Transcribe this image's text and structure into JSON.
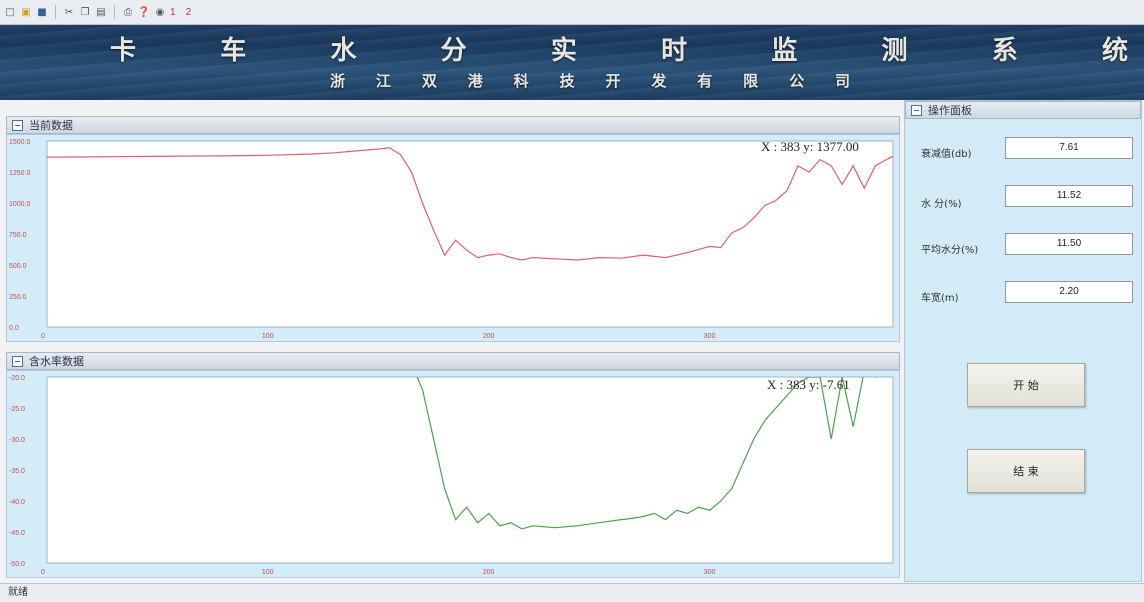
{
  "toolbar": {
    "icons": [
      "new-icon",
      "open-icon",
      "save-icon",
      "cut-icon",
      "copy-icon",
      "paste-icon",
      "print-icon",
      "help-icon",
      "about-icon"
    ],
    "num1": "1",
    "num2": "2"
  },
  "header": {
    "title_chars": [
      "卡",
      "车",
      "水",
      "分",
      "实",
      "时",
      "监",
      "测",
      "系",
      "统"
    ],
    "subtitle_chars": [
      "浙",
      "江",
      "双",
      "港",
      "科",
      "技",
      "开",
      "发",
      "有",
      "限",
      "公",
      "司"
    ]
  },
  "chart1": {
    "header": "当前数据",
    "readout": "X : 383   y: 1377.00"
  },
  "chart2": {
    "header": "含水率数据",
    "readout": "X : 383   y: -7.61"
  },
  "panel": {
    "header": "操作面板",
    "fields": [
      {
        "label": "衰减值(db)",
        "value": "7.61"
      },
      {
        "label": "水 分(%)",
        "value": "11.52"
      },
      {
        "label": "平均水分(%)",
        "value": "11.50"
      },
      {
        "label": "车宽(m)",
        "value": "2.20"
      }
    ],
    "start_label": "开 始",
    "stop_label": "结 束"
  },
  "status": {
    "text": "就绪"
  },
  "chart_data": [
    {
      "type": "line",
      "title": "",
      "color": "#e06070",
      "ylim": [
        0,
        1500
      ],
      "xlim": [
        0,
        383
      ],
      "yticks": [
        "1500.0",
        "1250.0",
        "1000.0",
        "750.0",
        "500.0",
        "250.0",
        "0.0"
      ],
      "xticks": [
        {
          "x": 0,
          "label": "0"
        },
        {
          "x": 100,
          "label": "100"
        },
        {
          "x": 200,
          "label": "200"
        },
        {
          "x": 300,
          "label": "300"
        }
      ],
      "x": [
        0,
        20,
        40,
        60,
        80,
        100,
        120,
        130,
        140,
        150,
        155,
        160,
        165,
        170,
        175,
        180,
        185,
        190,
        195,
        200,
        205,
        210,
        215,
        220,
        230,
        240,
        250,
        260,
        270,
        280,
        290,
        300,
        305,
        310,
        315,
        320,
        325,
        330,
        335,
        340,
        345,
        350,
        355,
        360,
        365,
        370,
        375,
        380,
        383
      ],
      "y": [
        1370,
        1372,
        1375,
        1378,
        1380,
        1385,
        1395,
        1405,
        1420,
        1435,
        1445,
        1390,
        1250,
        1000,
        780,
        580,
        700,
        620,
        560,
        580,
        590,
        560,
        540,
        560,
        550,
        540,
        560,
        555,
        580,
        560,
        600,
        650,
        640,
        760,
        800,
        880,
        980,
        1020,
        1100,
        1300,
        1250,
        1350,
        1300,
        1150,
        1300,
        1120,
        1300,
        1350,
        1377
      ]
    },
    {
      "type": "line",
      "title": "",
      "color": "#4aa24a",
      "ylim": [
        -50,
        -20
      ],
      "xlim": [
        0,
        383
      ],
      "yticks": [
        "-20.0",
        "-25.0",
        "-30.0",
        "-35.0",
        "-40.0",
        "-45.0",
        "-50.0"
      ],
      "xticks": [
        {
          "x": 0,
          "label": "0"
        },
        {
          "x": 100,
          "label": "100"
        },
        {
          "x": 200,
          "label": "200"
        },
        {
          "x": 300,
          "label": "300"
        }
      ],
      "x": [
        165,
        170,
        175,
        180,
        185,
        190,
        195,
        200,
        205,
        210,
        215,
        220,
        230,
        240,
        250,
        260,
        265,
        270,
        275,
        280,
        285,
        290,
        295,
        300,
        305,
        310,
        315,
        320,
        325,
        330,
        335,
        340,
        345,
        350,
        355,
        360,
        365,
        370,
        375,
        380,
        383
      ],
      "y": [
        -18,
        -22,
        -30,
        -38,
        -43,
        -41,
        -43.5,
        -42,
        -44,
        -43.5,
        -44.5,
        -44,
        -44.3,
        -44,
        -43.5,
        -43,
        -42.8,
        -42.5,
        -42,
        -43,
        -41.5,
        -42,
        -41,
        -41.5,
        -40,
        -38,
        -34,
        -30,
        -27,
        -25,
        -23,
        -21,
        -20,
        -20,
        -30,
        -20,
        -28,
        -19,
        -20,
        -19,
        -7.61
      ]
    }
  ]
}
